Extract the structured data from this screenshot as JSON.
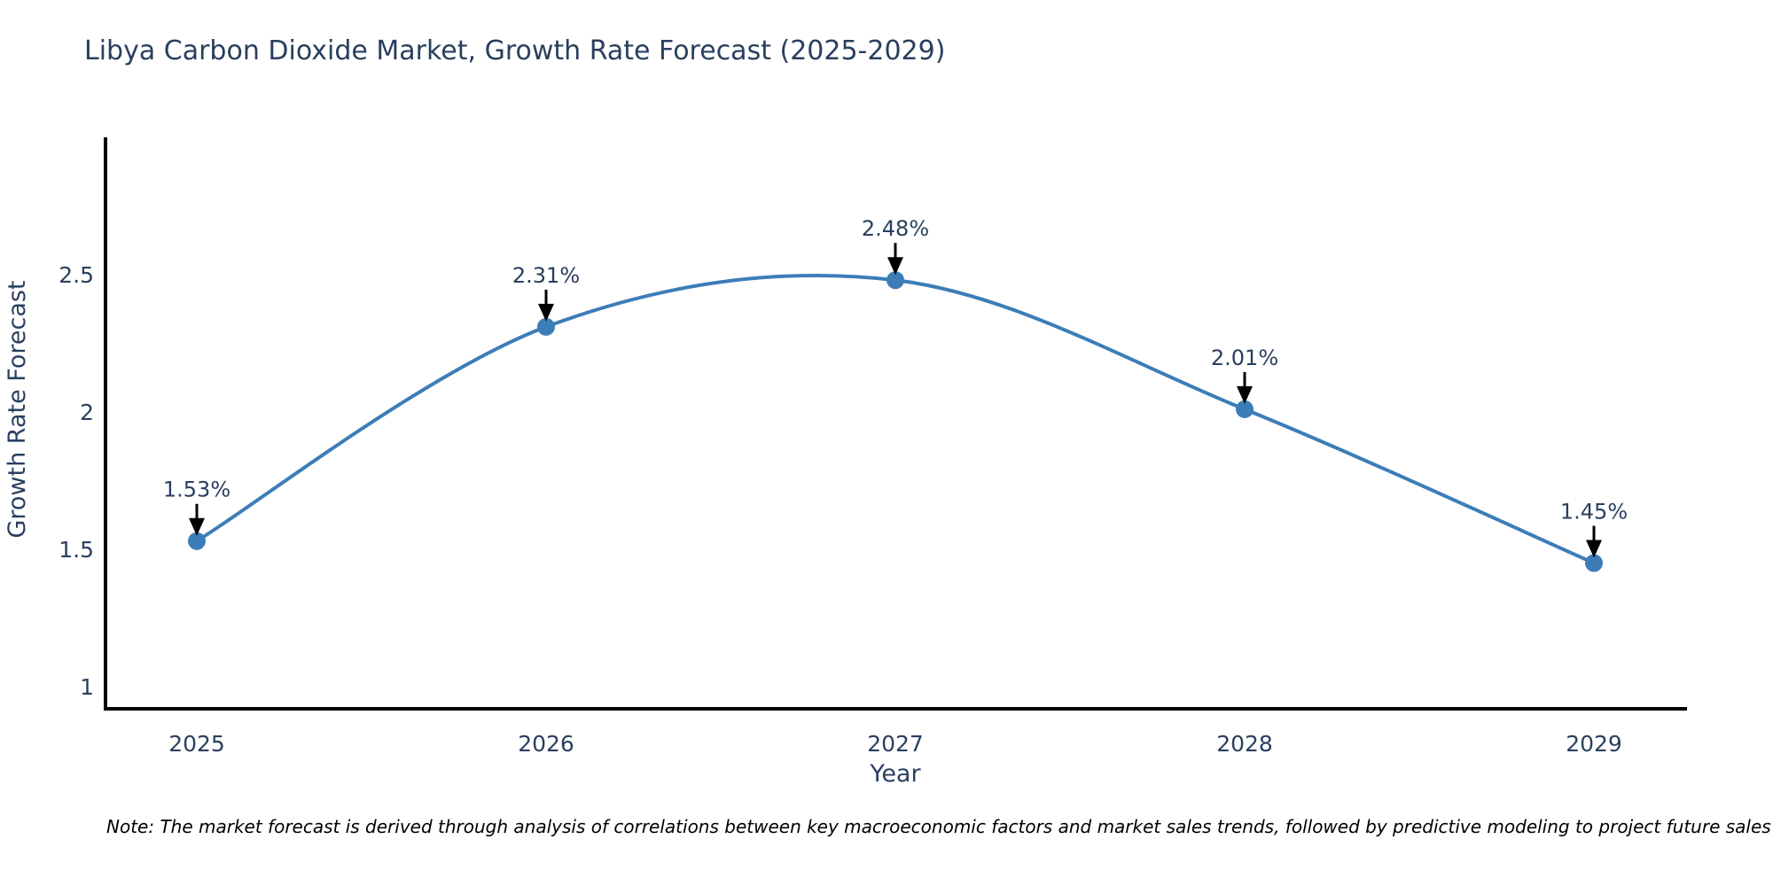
{
  "chart_data": {
    "type": "line",
    "title": "Libya Carbon Dioxide Market, Growth Rate Forecast (2025-2029)",
    "xlabel": "Year",
    "ylabel": "Growth Rate Forecast",
    "x": [
      2025,
      2026,
      2027,
      2028,
      2029
    ],
    "series": [
      {
        "name": "Growth Rate Forecast",
        "values": [
          1.53,
          2.31,
          2.48,
          2.01,
          1.45
        ]
      }
    ],
    "point_labels": [
      "1.53%",
      "2.31%",
      "2.48%",
      "2.01%",
      "1.45%"
    ],
    "xticks": [
      "2025",
      "2026",
      "2027",
      "2028",
      "2029"
    ],
    "yticks": [
      "1",
      "1.5",
      "2",
      "2.5"
    ],
    "ytick_values": [
      1,
      1.5,
      2,
      2.5
    ],
    "ylim": [
      0.92,
      3.0
    ],
    "line_shape": "spline",
    "grid": false,
    "legend": "none",
    "annotation_style": "value label above each point with downward black arrow",
    "colors": {
      "line": "#3c7db8",
      "marker": "#3c7db8",
      "chart_text": "#2a3f5f",
      "axis_line": "#000000",
      "arrow": "#000000",
      "note_text": "#000000",
      "background": "#ffffff"
    }
  },
  "footer": {
    "note": "Note: The market forecast is derived through analysis of correlations between key macroeconomic factors and market sales trends, followed by predictive modeling to project future sales"
  }
}
